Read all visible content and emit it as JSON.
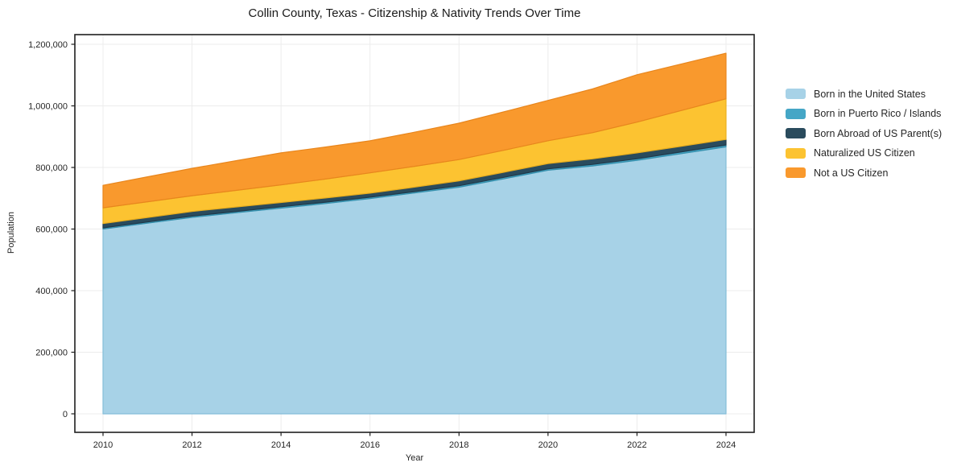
{
  "chart_data": {
    "type": "area",
    "stacked": true,
    "title": "Collin County, Texas - Citizenship & Nativity Trends Over Time",
    "xlabel": "Year",
    "ylabel": "Population",
    "x": [
      2010,
      2011,
      2012,
      2013,
      2014,
      2015,
      2016,
      2017,
      2018,
      2019,
      2020,
      2021,
      2022,
      2023,
      2024
    ],
    "xticks": [
      2010,
      2012,
      2014,
      2016,
      2018,
      2020,
      2022,
      2024
    ],
    "yticks": [
      0,
      200000,
      400000,
      600000,
      800000,
      1000000,
      1200000
    ],
    "ylim": [
      0,
      1200000
    ],
    "grid": true,
    "legend_position": "right-outside",
    "series": [
      {
        "name": "Born in the United States",
        "color": "#a7d2e7",
        "edge_color": "#85bdd9",
        "values": [
          600000,
          619000,
          638000,
          653000,
          668000,
          683000,
          699000,
          717000,
          736000,
          763000,
          791000,
          805000,
          823000,
          845000,
          867000
        ]
      },
      {
        "name": "Born in Puerto Rico / Islands",
        "color": "#45a6c6",
        "edge_color": "#3690ad",
        "values": [
          4000,
          4100,
          4200,
          4300,
          4400,
          4400,
          4500,
          4600,
          4700,
          4800,
          4900,
          5000,
          5200,
          5600,
          6000
        ]
      },
      {
        "name": "Born Abroad of US Parent(s)",
        "color": "#2a4b5d",
        "edge_color": "#20394a",
        "values": [
          14000,
          14500,
          15000,
          14500,
          14000,
          13500,
          13000,
          14500,
          16000,
          16500,
          17000,
          18000,
          19000,
          18500,
          18000
        ]
      },
      {
        "name": "Naturalized US Citizen",
        "color": "#fcc331",
        "edge_color": "#eaaf1e",
        "values": [
          51000,
          51000,
          51000,
          54000,
          57000,
          61500,
          66000,
          67500,
          69000,
          71500,
          74000,
          85000,
          100000,
          116000,
          132000
        ]
      },
      {
        "name": "Not a US Citizen",
        "color": "#f9992d",
        "edge_color": "#e8861d",
        "values": [
          73000,
          81000,
          89000,
          96500,
          104000,
          104000,
          104000,
          111000,
          118000,
          124500,
          131000,
          142000,
          154000,
          151000,
          148000
        ]
      }
    ],
    "colors": {
      "spine": "#1f1f1f",
      "grid": "#ececec",
      "tick_text": "#262626",
      "title_text": "#1a1a1a",
      "background": "#ffffff"
    }
  }
}
